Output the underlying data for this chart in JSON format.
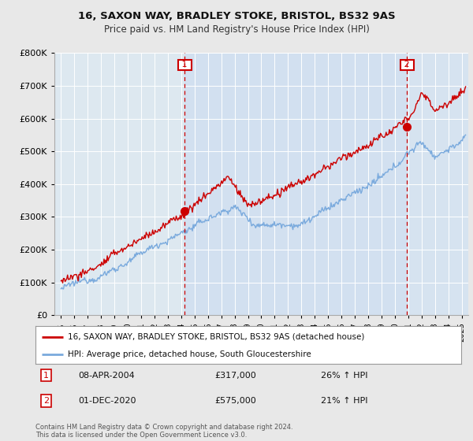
{
  "title1": "16, SAXON WAY, BRADLEY STOKE, BRISTOL, BS32 9AS",
  "title2": "Price paid vs. HM Land Registry's House Price Index (HPI)",
  "legend_line1": "16, SAXON WAY, BRADLEY STOKE, BRISTOL, BS32 9AS (detached house)",
  "legend_line2": "HPI: Average price, detached house, South Gloucestershire",
  "annotation1_label": "1",
  "annotation1_date": "08-APR-2004",
  "annotation1_price": "£317,000",
  "annotation1_hpi": "26% ↑ HPI",
  "annotation2_label": "2",
  "annotation2_date": "01-DEC-2020",
  "annotation2_price": "£575,000",
  "annotation2_hpi": "21% ↑ HPI",
  "footnote": "Contains HM Land Registry data © Crown copyright and database right 2024.\nThis data is licensed under the Open Government Licence v3.0.",
  "sale1_x": 2004.27,
  "sale1_y": 317000,
  "sale2_x": 2020.92,
  "sale2_y": 575000,
  "vline1_x": 2004.27,
  "vline2_x": 2020.92,
  "red_color": "#cc0000",
  "blue_color": "#7aaadd",
  "vline_color": "#cc0000",
  "background_color": "#e8e8e8",
  "plot_bg_color": "#dde8f0",
  "shade_color": "#c8daf0",
  "ylim_min": 0,
  "ylim_max": 800000,
  "xlim_min": 1994.5,
  "xlim_max": 2025.5,
  "yticks": [
    0,
    100000,
    200000,
    300000,
    400000,
    500000,
    600000,
    700000,
    800000
  ],
  "xticks": [
    1995,
    1996,
    1997,
    1998,
    1999,
    2000,
    2001,
    2002,
    2003,
    2004,
    2005,
    2006,
    2007,
    2008,
    2009,
    2010,
    2011,
    2012,
    2013,
    2014,
    2015,
    2016,
    2017,
    2018,
    2019,
    2020,
    2021,
    2022,
    2023,
    2024,
    2025
  ]
}
